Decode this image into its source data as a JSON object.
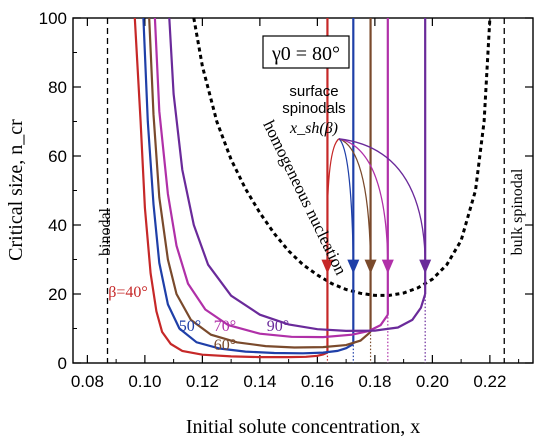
{
  "chart_data": {
    "type": "line",
    "title": "",
    "xlabel": "Initial solute concentration, x",
    "ylabel": "Critical size, n_cr",
    "xlim": [
      0.075,
      0.235
    ],
    "ylim": [
      0,
      100
    ],
    "xticks": [
      0.08,
      0.1,
      0.12,
      0.14,
      0.16,
      0.18,
      0.2,
      0.22
    ],
    "xtick_labels": [
      "0.08",
      "0.10",
      "0.12",
      "0.14",
      "0.16",
      "0.18",
      "0.20",
      "0.22"
    ],
    "yticks": [
      0,
      20,
      40,
      60,
      80,
      100
    ],
    "ytick_labels": [
      "0",
      "20",
      "40",
      "60",
      "80",
      "100"
    ],
    "grid": false,
    "legend": "none",
    "contact_angle_label": "γ0 = 80°",
    "vertical_lines": [
      {
        "name": "binodal",
        "label": "binodal",
        "x": 0.087
      },
      {
        "name": "bulk spinodal",
        "label": "bulk spinodal",
        "x": 0.225
      }
    ],
    "homogeneous": {
      "label": "homogeneous nucleation",
      "color": "#000000",
      "points": [
        [
          0.117,
          100
        ],
        [
          0.12,
          86
        ],
        [
          0.125,
          70
        ],
        [
          0.13,
          59
        ],
        [
          0.135,
          50.5
        ],
        [
          0.14,
          43.5
        ],
        [
          0.145,
          37.5
        ],
        [
          0.15,
          32.5
        ],
        [
          0.155,
          28.5
        ],
        [
          0.16,
          25.5
        ],
        [
          0.165,
          23
        ],
        [
          0.17,
          21.3
        ],
        [
          0.175,
          20.2
        ],
        [
          0.18,
          19.6
        ],
        [
          0.185,
          19.6
        ],
        [
          0.19,
          20.3
        ],
        [
          0.195,
          21.8
        ],
        [
          0.2,
          24.3
        ],
        [
          0.205,
          28.5
        ],
        [
          0.21,
          35.5
        ],
        [
          0.215,
          50
        ],
        [
          0.218,
          70
        ],
        [
          0.22,
          100
        ]
      ]
    },
    "series": [
      {
        "name": "β=40°",
        "label": "β=40°",
        "color": "#c62828",
        "spinodal": 0.1635,
        "points": [
          [
            0.0965,
            100
          ],
          [
            0.0985,
            70
          ],
          [
            0.1,
            45
          ],
          [
            0.102,
            26
          ],
          [
            0.104,
            15
          ],
          [
            0.106,
            9
          ],
          [
            0.109,
            5.5
          ],
          [
            0.113,
            3.5
          ],
          [
            0.12,
            2.4
          ],
          [
            0.13,
            1.9
          ],
          [
            0.14,
            1.7
          ],
          [
            0.15,
            1.7
          ],
          [
            0.156,
            1.8
          ],
          [
            0.16,
            2.1
          ],
          [
            0.162,
            2.5
          ],
          [
            0.1635,
            3
          ]
        ]
      },
      {
        "name": "50°",
        "label": "50°",
        "color": "#1f3fa8",
        "spinodal": 0.1725,
        "points": [
          [
            0.0995,
            100
          ],
          [
            0.101,
            70
          ],
          [
            0.103,
            46
          ],
          [
            0.105,
            29
          ],
          [
            0.108,
            17
          ],
          [
            0.112,
            10
          ],
          [
            0.118,
            6
          ],
          [
            0.126,
            4.2
          ],
          [
            0.135,
            3.3
          ],
          [
            0.145,
            2.9
          ],
          [
            0.155,
            2.8
          ],
          [
            0.162,
            3
          ],
          [
            0.167,
            3.5
          ],
          [
            0.17,
            4.3
          ],
          [
            0.1725,
            5.5
          ]
        ]
      },
      {
        "name": "60°",
        "label": "60°",
        "color": "#7a4a2c",
        "spinodal": 0.1785,
        "points": [
          [
            0.1015,
            100
          ],
          [
            0.103,
            72
          ],
          [
            0.105,
            48
          ],
          [
            0.108,
            30
          ],
          [
            0.111,
            20
          ],
          [
            0.116,
            12.5
          ],
          [
            0.123,
            8.2
          ],
          [
            0.132,
            6
          ],
          [
            0.142,
            4.9
          ],
          [
            0.152,
            4.5
          ],
          [
            0.162,
            4.6
          ],
          [
            0.17,
            5.2
          ],
          [
            0.175,
            6.5
          ],
          [
            0.1785,
            9
          ]
        ]
      },
      {
        "name": "70°",
        "label": "70°",
        "color": "#b030a8",
        "spinodal": 0.1845,
        "points": [
          [
            0.1035,
            100
          ],
          [
            0.105,
            73
          ],
          [
            0.108,
            49
          ],
          [
            0.111,
            34
          ],
          [
            0.115,
            23
          ],
          [
            0.121,
            15.5
          ],
          [
            0.129,
            11
          ],
          [
            0.14,
            8.5
          ],
          [
            0.151,
            7.6
          ],
          [
            0.162,
            7.5
          ],
          [
            0.172,
            8.2
          ],
          [
            0.178,
            9.3
          ],
          [
            0.182,
            11
          ],
          [
            0.1845,
            14
          ]
        ]
      },
      {
        "name": "90°",
        "label": "90°",
        "color": "#6a2a9a",
        "spinodal": 0.1975,
        "points": [
          [
            0.1085,
            100
          ],
          [
            0.11,
            78
          ],
          [
            0.113,
            56
          ],
          [
            0.117,
            40
          ],
          [
            0.122,
            28.5
          ],
          [
            0.13,
            19.5
          ],
          [
            0.14,
            14
          ],
          [
            0.15,
            11.2
          ],
          [
            0.16,
            9.8
          ],
          [
            0.17,
            9.3
          ],
          [
            0.18,
            9.4
          ],
          [
            0.188,
            10.3
          ],
          [
            0.193,
            12.5
          ],
          [
            0.196,
            16
          ],
          [
            0.1975,
            20
          ]
        ]
      }
    ],
    "annotation": {
      "line1": "surface",
      "line2": "spinodals",
      "formula": "x_sh(β)",
      "anchor": [
        0.164,
        65
      ],
      "arrow_tip_y": 26.5
    }
  }
}
